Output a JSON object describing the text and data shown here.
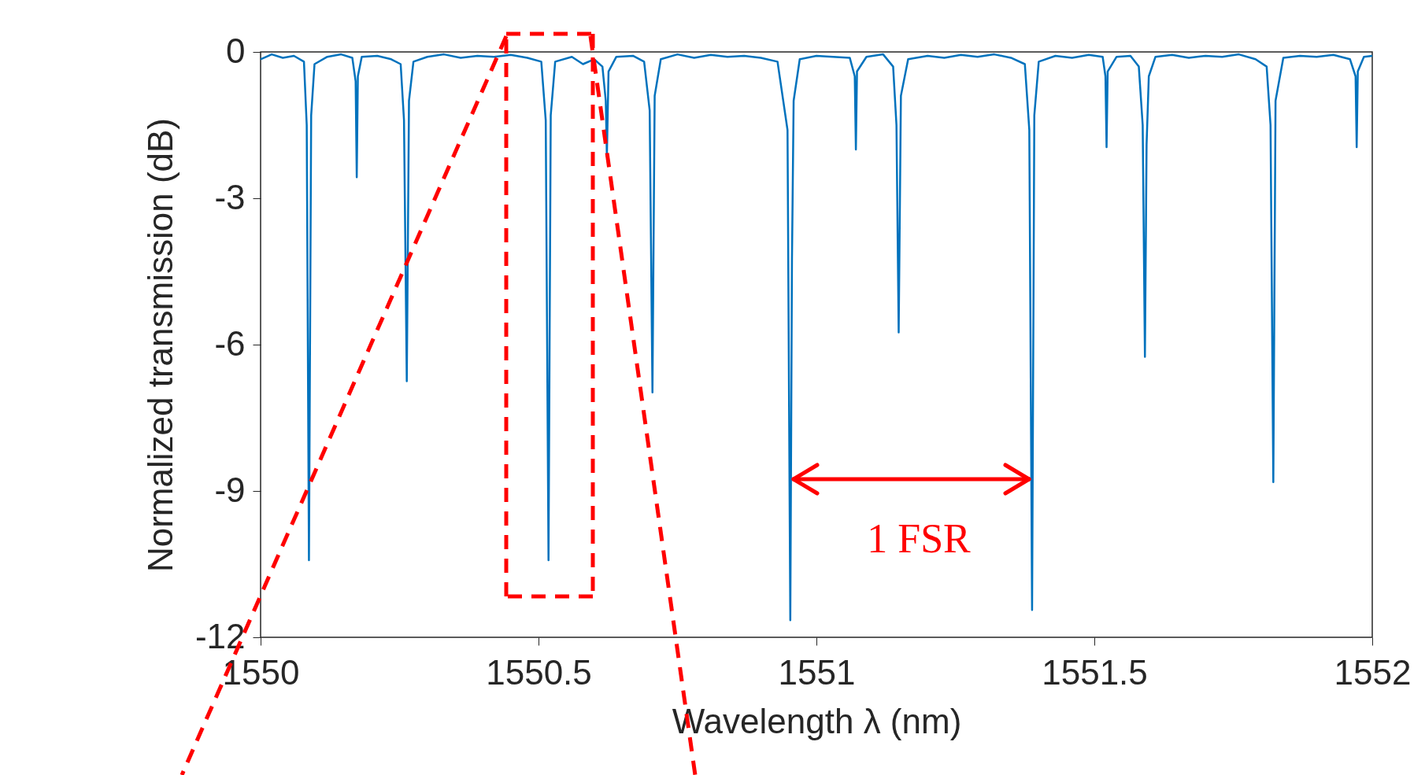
{
  "chart_data": {
    "type": "line",
    "xlabel": "Wavelength λ (nm)",
    "ylabel": "Normalized transmission (dB)",
    "xlim": [
      1550,
      1552
    ],
    "xticks": [
      1550,
      1550.5,
      1551,
      1551.5,
      1552
    ],
    "ylim": [
      -12,
      0
    ],
    "yticks": [
      -12,
      -9,
      -6,
      -3,
      0
    ],
    "grid": false,
    "legend": false,
    "marker": "none",
    "line_style": "solid",
    "annotations": [
      "1 FSR"
    ],
    "series": [
      {
        "color": "#0072bd",
        "x": [
          1550.0,
          1550.02,
          1550.04,
          1550.06,
          1550.078,
          1550.083,
          1550.087,
          1550.091,
          1550.097,
          1550.12,
          1550.145,
          1550.165,
          1550.171,
          1550.173,
          1550.175,
          1550.182,
          1550.21,
          1550.235,
          1550.252,
          1550.258,
          1550.263,
          1550.267,
          1550.275,
          1550.3,
          1550.33,
          1550.36,
          1550.39,
          1550.42,
          1550.45,
          1550.48,
          1550.505,
          1550.513,
          1550.518,
          1550.522,
          1550.53,
          1550.56,
          1550.58,
          1550.6,
          1550.615,
          1550.621,
          1550.623,
          1550.626,
          1550.64,
          1550.67,
          1550.69,
          1550.7,
          1550.705,
          1550.709,
          1550.72,
          1550.75,
          1550.78,
          1550.81,
          1550.84,
          1550.87,
          1550.9,
          1550.93,
          1550.948,
          1550.953,
          1550.956,
          1550.959,
          1550.97,
          1551.0,
          1551.03,
          1551.06,
          1551.069,
          1551.071,
          1551.073,
          1551.09,
          1551.12,
          1551.138,
          1551.144,
          1551.148,
          1551.152,
          1551.165,
          1551.2,
          1551.23,
          1551.26,
          1551.29,
          1551.32,
          1551.35,
          1551.375,
          1551.383,
          1551.388,
          1551.392,
          1551.4,
          1551.43,
          1551.46,
          1551.49,
          1551.515,
          1551.52,
          1551.522,
          1551.524,
          1551.54,
          1551.565,
          1551.58,
          1551.587,
          1551.591,
          1551.594,
          1551.598,
          1551.61,
          1551.64,
          1551.67,
          1551.7,
          1551.73,
          1551.76,
          1551.79,
          1551.81,
          1551.817,
          1551.822,
          1551.826,
          1551.84,
          1551.87,
          1551.9,
          1551.93,
          1551.96,
          1551.97,
          1551.972,
          1551.974,
          1551.985,
          1552.0
        ],
        "values": [
          -0.15,
          -0.05,
          -0.12,
          -0.08,
          -0.2,
          -1.5,
          -10.42,
          -1.3,
          -0.25,
          -0.1,
          -0.05,
          -0.12,
          -0.6,
          -2.57,
          -0.5,
          -0.1,
          -0.08,
          -0.15,
          -0.25,
          -1.4,
          -6.75,
          -1.0,
          -0.2,
          -0.1,
          -0.05,
          -0.12,
          -0.08,
          -0.1,
          -0.06,
          -0.12,
          -0.2,
          -1.4,
          -10.42,
          -1.3,
          -0.2,
          -0.1,
          -0.25,
          -0.15,
          -0.3,
          -1.0,
          -2.14,
          -0.4,
          -0.1,
          -0.08,
          -0.2,
          -1.2,
          -6.98,
          -0.9,
          -0.15,
          -0.05,
          -0.12,
          -0.06,
          -0.1,
          -0.08,
          -0.12,
          -0.2,
          -1.6,
          -11.65,
          -4.28,
          -1.0,
          -0.15,
          -0.08,
          -0.1,
          -0.12,
          -0.5,
          -2.0,
          -0.4,
          -0.1,
          -0.05,
          -0.3,
          -1.5,
          -5.75,
          -0.9,
          -0.15,
          -0.08,
          -0.12,
          -0.06,
          -0.1,
          -0.05,
          -0.12,
          -0.25,
          -1.6,
          -11.44,
          -1.3,
          -0.2,
          -0.08,
          -0.12,
          -0.06,
          -0.1,
          -0.5,
          -1.95,
          -0.4,
          -0.1,
          -0.08,
          -0.3,
          -1.5,
          -6.25,
          -1.9,
          -0.5,
          -0.1,
          -0.06,
          -0.12,
          -0.08,
          -0.1,
          -0.05,
          -0.15,
          -0.3,
          -1.5,
          -8.82,
          -1.0,
          -0.12,
          -0.08,
          -0.1,
          -0.06,
          -0.15,
          -0.5,
          -1.95,
          -0.4,
          -0.1,
          -0.08
        ]
      }
    ]
  }
}
